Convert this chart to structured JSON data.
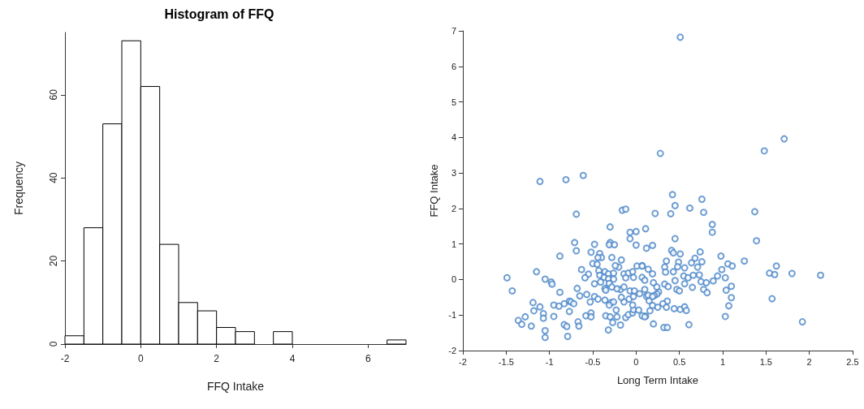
{
  "chart_data": [
    {
      "type": "histogram",
      "title": "Histogram of FFQ",
      "xlabel": "FFQ Intake",
      "ylabel": "Frequency",
      "color": "#ffffff",
      "bins": [
        -2,
        -1.5,
        -1,
        -0.5,
        0,
        0.5,
        1,
        1.5,
        2,
        2.5,
        3,
        3.5,
        4,
        4.5,
        5,
        5.5,
        6,
        6.5,
        7
      ],
      "values": [
        2,
        28,
        53,
        73,
        62,
        24,
        10,
        8,
        4,
        3,
        0,
        3,
        0,
        0,
        0,
        0,
        0,
        1
      ],
      "xlim": [
        -2,
        7
      ],
      "xticks": [
        -2,
        0,
        2,
        4,
        6
      ],
      "ylim": [
        0,
        75
      ],
      "yticks": [
        0,
        20,
        40,
        60
      ],
      "grid": false
    },
    {
      "type": "scatter",
      "xlabel": "Long Term Intake",
      "ylabel": "FFQ Intake",
      "marker": "circle",
      "grid": false,
      "xlim": [
        -2,
        2.5
      ],
      "xticks": [
        -2,
        -1.5,
        -1,
        -0.5,
        0,
        0.5,
        1,
        1.5,
        2,
        2.5
      ],
      "ylim": [
        -2,
        7
      ],
      "yticks": [
        -2,
        -1,
        0,
        1,
        2,
        3,
        4,
        5,
        6,
        7
      ],
      "series": [
        {
          "color": "#4a86c8",
          "x": [
            0.51,
            1.71,
            1.48,
            0.28,
            0.42,
            0.45,
            0.76,
            0.62,
            0.22,
            0.4,
            0.78,
            1.37,
            0.11,
            0.88,
            0.88,
            1.39,
            0.45,
            0.12,
            0.19,
            0.41,
            0.43,
            0.51,
            0.74,
            0.98,
            0.35,
            0.68,
            0.64,
            0.76,
            0.49,
            1.25,
            1.06,
            1.11,
            1.62,
            1.54,
            1.6,
            1.8,
            2.13,
            0.33,
            0.48,
            0.56,
            0.71,
            0.99,
            0.94,
            1.03,
            0.89,
            0.14,
            0.19,
            0.34,
            0.43,
            0.73,
            0.55,
            0.6,
            0.66,
            0.45,
            0.75,
            0.81,
            0.33,
            0.37,
            0.56,
            0.65,
            0.78,
            0.82,
            1.1,
            1.04,
            1.1,
            0.47,
            0.5,
            0.26,
            0.24,
            0.21,
            0.12,
            0.15,
            0.36,
            0.31,
            0.19,
            0.25,
            0.35,
            0.44,
            0.51,
            0.56,
            0.58,
            1.07,
            1.03,
            1.57,
            1.92,
            0.2,
            0.32,
            0.36,
            0.61,
            0.16,
            0.11,
            0.07,
            -1.11,
            -0.81,
            -0.61,
            -0.69,
            -0.16,
            -0.12,
            -0.3,
            -0.07,
            0,
            -0.07,
            0,
            -0.71,
            -0.69,
            -0.48,
            -0.3,
            -0.31,
            -0.25,
            -0.88,
            -0.52,
            -0.42,
            -0.4,
            -0.44,
            -0.28,
            -0.17,
            -0.5,
            -0.45,
            -0.63,
            -0.55,
            -0.59,
            -0.43,
            -0.36,
            -0.32,
            -0.26,
            -0.2,
            -0.24,
            -0.42,
            -0.37,
            -0.32,
            -0.26,
            -0.41,
            -0.48,
            -0.31,
            -0.36,
            -0.35,
            -0.28,
            -0.14,
            -0.09,
            -0.04,
            0.01,
            0.07,
            -0.12,
            -0.03,
            0.07,
            0.1,
            0.2,
            0.24,
            -0.18,
            -0.22,
            -0.14,
            -0.07,
            -0.02,
            0.04,
            0.1,
            0.14,
            0.19,
            -1.49,
            -1.43,
            -1.15,
            -1.05,
            -0.98,
            -0.97,
            -0.88,
            -0.68,
            -0.65,
            -0.57,
            -0.48,
            -0.44,
            -0.53,
            -0.36,
            -0.29,
            -1.19,
            -1.18,
            -1.11,
            -1.07,
            -1.07,
            -1.28,
            -1.36,
            -1.32,
            -1.21,
            -1.05,
            -1.05,
            -0.95,
            -0.89,
            -0.83,
            -0.77,
            -0.75,
            -0.72,
            -0.77,
            -0.95,
            -0.83,
            -0.8,
            -0.79,
            -0.67,
            -0.66,
            -0.58,
            -0.52,
            -0.52,
            -0.35,
            -0.3,
            -0.27,
            -0.32,
            -0.18,
            -0.22,
            -0.12,
            -0.09,
            -0.04,
            -0.03,
            -0.04,
            0.03,
            0.07,
            0.1,
            -0.31,
            -0.26,
            -0.23,
            -0.14,
            -0.17,
            -0.08,
            -0.03
          ],
          "values": [
            6.82,
            3.96,
            3.62,
            3.55,
            2.39,
            2.08,
            2.26,
            2.01,
            1.86,
            1.85,
            1.89,
            1.91,
            1.43,
            1.55,
            1.33,
            1.09,
            1.15,
            0.88,
            0.96,
            0.82,
            0.75,
            0.72,
            0.78,
            0.66,
            0.52,
            0.6,
            0.47,
            0.5,
            0.49,
            0.52,
            0.44,
            0.38,
            0.38,
            0.18,
            0.14,
            0.17,
            0.12,
            0.35,
            0.36,
            0.33,
            0.35,
            0.28,
            0.1,
            0.05,
            -0.04,
            0.29,
            0.16,
            0.21,
            0.22,
            0.13,
            0.1,
            0.05,
            0.12,
            -0.03,
            -0.06,
            -0.09,
            -0.13,
            -0.2,
            -0.12,
            -0.22,
            -0.28,
            -0.37,
            -0.19,
            -0.3,
            -0.51,
            -0.28,
            -0.32,
            -0.35,
            -0.41,
            -0.45,
            -0.47,
            -0.6,
            -0.61,
            -0.68,
            -0.73,
            -0.78,
            -0.78,
            -0.82,
            -0.84,
            -0.77,
            -0.87,
            -0.74,
            -1.04,
            -0.54,
            -1.19,
            -1.25,
            -1.35,
            -1.35,
            -1.27,
            -0.88,
            -1.03,
            0.39,
            2.76,
            2.81,
            2.93,
            1.84,
            1.95,
            1.98,
            1.48,
            1.33,
            1.35,
            1.15,
            0.97,
            1.04,
            0.81,
            0.99,
            1.04,
            0.98,
            0.98,
            0.66,
            0.77,
            0.73,
            0.62,
            0.62,
            0.62,
            0.55,
            0.45,
            0.43,
            0.28,
            0.15,
            0.05,
            0.25,
            0.22,
            0.16,
            0.18,
            0.35,
            0.39,
            0.12,
            0.06,
            0.02,
            0.01,
            -0.07,
            -0.12,
            -0.11,
            -0.25,
            -0.3,
            -0.21,
            0.16,
            0.18,
            0.22,
            0.38,
            0.38,
            0.05,
            0.06,
            0.06,
            -0.02,
            -0.09,
            -0.21,
            -0.28,
            -0.26,
            -0.21,
            -0.32,
            -0.32,
            -0.4,
            -0.28,
            -0.44,
            -0.48,
            0.05,
            -0.32,
            0.22,
            0.01,
            -0.07,
            -0.13,
            -0.36,
            -0.25,
            -0.46,
            -0.42,
            -0.48,
            -0.55,
            -0.63,
            -0.58,
            -0.65,
            -0.65,
            -0.88,
            -0.77,
            -0.96,
            -1.09,
            -1.05,
            -1.15,
            -1.26,
            -1.31,
            -1.44,
            -1.63,
            -0.72,
            -0.75,
            -0.68,
            -0.61,
            -0.63,
            -0.68,
            -0.9,
            -1.04,
            -1.27,
            -1.32,
            -1.6,
            -1.19,
            -1.31,
            -1.02,
            -0.94,
            -1.05,
            -1.02,
            -1.05,
            -1.21,
            -1.42,
            -1.28,
            -1.05,
            -1.07,
            -0.99,
            -0.94,
            -0.85,
            -0.72,
            -0.86,
            -1.02,
            -1.05,
            -0.72,
            -0.63,
            -0.86,
            -0.63,
            -0.5,
            -0.55,
            -0.48
          ]
        }
      ]
    }
  ]
}
